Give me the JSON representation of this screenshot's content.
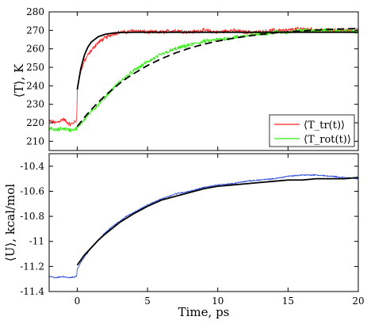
{
  "chart_data": [
    {
      "type": "line",
      "title": "",
      "xlabel": "",
      "ylabel": "⟨T⟩, K",
      "xlim": [
        -2,
        20
      ],
      "ylim": [
        205,
        280
      ],
      "x_ticks": [
        0,
        5,
        10,
        15,
        20
      ],
      "x_tick_labels": [
        "",
        "",
        "",
        "",
        ""
      ],
      "y_ticks": [
        210,
        220,
        230,
        240,
        250,
        260,
        270,
        280
      ],
      "y_tick_labels": [
        "210",
        "220",
        "230",
        "240",
        "250",
        "260",
        "270",
        "280"
      ],
      "grid": false,
      "legend_position": "bottom-right",
      "series": [
        {
          "name": "⟨T_tr(t)⟩",
          "color": "#ff2020",
          "style": "noisy",
          "x": [
            -2,
            -1.5,
            -1,
            -0.5,
            -0.05,
            0,
            0.1,
            0.2,
            0.3,
            0.5,
            0.7,
            1,
            1.3,
            1.6,
            2,
            2.5,
            3,
            3.5,
            4,
            5,
            6,
            7,
            8,
            9,
            10,
            11,
            12,
            13,
            14,
            15,
            16,
            17,
            18,
            19,
            20
          ],
          "y": [
            221,
            220,
            222,
            219,
            221,
            236,
            243,
            246,
            249,
            253,
            256,
            259,
            262,
            264,
            266,
            268,
            269,
            269,
            270,
            269,
            269,
            270,
            269,
            270,
            269,
            270,
            269,
            269,
            270,
            270,
            271,
            270,
            270,
            270,
            270
          ]
        },
        {
          "name": "⟨T_rot(t)⟩",
          "color": "#33ee11",
          "style": "noisy",
          "x": [
            -2,
            -1.5,
            -1,
            -0.5,
            0,
            0.2,
            0.5,
            1,
            1.5,
            2,
            2.5,
            3,
            3.5,
            4,
            5,
            6,
            7,
            8,
            9,
            10,
            11,
            12,
            13,
            14,
            15,
            16,
            17,
            18,
            19,
            20
          ],
          "y": [
            217,
            216,
            217,
            216,
            217,
            219,
            222,
            226,
            230,
            234,
            238,
            242,
            245,
            248,
            253,
            257,
            260,
            262,
            264,
            265,
            266,
            267,
            268,
            269,
            269,
            270,
            270,
            270,
            270,
            269
          ]
        },
        {
          "name": "",
          "color": "#000000",
          "style": "solid",
          "x": [
            0,
            0.25,
            0.5,
            0.75,
            1,
            1.5,
            2,
            2.5,
            3,
            3.5,
            4,
            5,
            6,
            8,
            10,
            12,
            15,
            20
          ],
          "y": [
            238,
            249.3,
            256.4,
            260.9,
            263.7,
            266.6,
            267.9,
            268.5,
            268.8,
            268.9,
            268.96,
            269,
            269,
            269,
            269,
            269,
            269,
            269
          ]
        },
        {
          "name": "",
          "color": "#000000",
          "style": "dashed",
          "x": [
            0,
            0.5,
            1,
            1.5,
            2,
            2.5,
            3,
            3.5,
            4,
            5,
            6,
            7,
            8,
            9,
            10,
            11,
            12,
            13,
            14,
            15,
            16,
            17,
            18,
            19,
            20
          ],
          "y": [
            218,
            222.8,
            227.2,
            231.1,
            234.8,
            238.1,
            241.2,
            244,
            246.5,
            251,
            254.7,
            257.8,
            260.4,
            262.5,
            264.2,
            265.6,
            266.8,
            267.8,
            268.6,
            269.2,
            269.7,
            270.2,
            270.5,
            270.8,
            271
          ]
        }
      ]
    },
    {
      "type": "line",
      "title": "",
      "xlabel": "Time, ps",
      "ylabel": "⟨U⟩, kcal/mol",
      "xlim": [
        -2,
        20
      ],
      "ylim": [
        -11.4,
        -10.3
      ],
      "x_ticks": [
        0,
        5,
        10,
        15,
        20
      ],
      "x_tick_labels": [
        "0",
        "5",
        "10",
        "15",
        "20"
      ],
      "y_ticks": [
        -11.4,
        -11.2,
        -11,
        -10.8,
        -10.6,
        -10.4
      ],
      "y_tick_labels": [
        "-11.4",
        "-11.2",
        "-11",
        "-10.8",
        "-10.6",
        "-10.4"
      ],
      "grid": false,
      "series": [
        {
          "name": "",
          "color": "#2040dd",
          "style": "noisy",
          "x": [
            -2,
            -1.5,
            -1,
            -0.5,
            -0.05,
            0,
            0.3,
            0.6,
            1,
            1.5,
            2,
            2.5,
            3,
            3.5,
            4,
            5,
            6,
            7,
            8,
            9,
            10,
            11,
            12,
            13,
            14,
            15,
            16,
            17,
            18,
            19,
            20
          ],
          "y": [
            -11.28,
            -11.29,
            -11.28,
            -11.29,
            -11.28,
            -11.22,
            -11.16,
            -11.11,
            -11.05,
            -10.99,
            -10.93,
            -10.88,
            -10.84,
            -10.8,
            -10.77,
            -10.71,
            -10.66,
            -10.62,
            -10.6,
            -10.57,
            -10.55,
            -10.54,
            -10.52,
            -10.51,
            -10.5,
            -10.48,
            -10.47,
            -10.47,
            -10.48,
            -10.49,
            -10.5
          ]
        },
        {
          "name": "",
          "color": "#000000",
          "style": "solid",
          "x": [
            0,
            0.5,
            1,
            1.5,
            2,
            3,
            4,
            5,
            6,
            7,
            8,
            9,
            10,
            11,
            12,
            13,
            14,
            15,
            16,
            17,
            18,
            19,
            20
          ],
          "y": [
            -11.19,
            -11.11,
            -11.05,
            -10.99,
            -10.94,
            -10.85,
            -10.78,
            -10.72,
            -10.67,
            -10.64,
            -10.61,
            -10.58,
            -10.56,
            -10.55,
            -10.54,
            -10.53,
            -10.52,
            -10.51,
            -10.51,
            -10.5,
            -10.5,
            -10.5,
            -10.49
          ]
        }
      ]
    }
  ]
}
